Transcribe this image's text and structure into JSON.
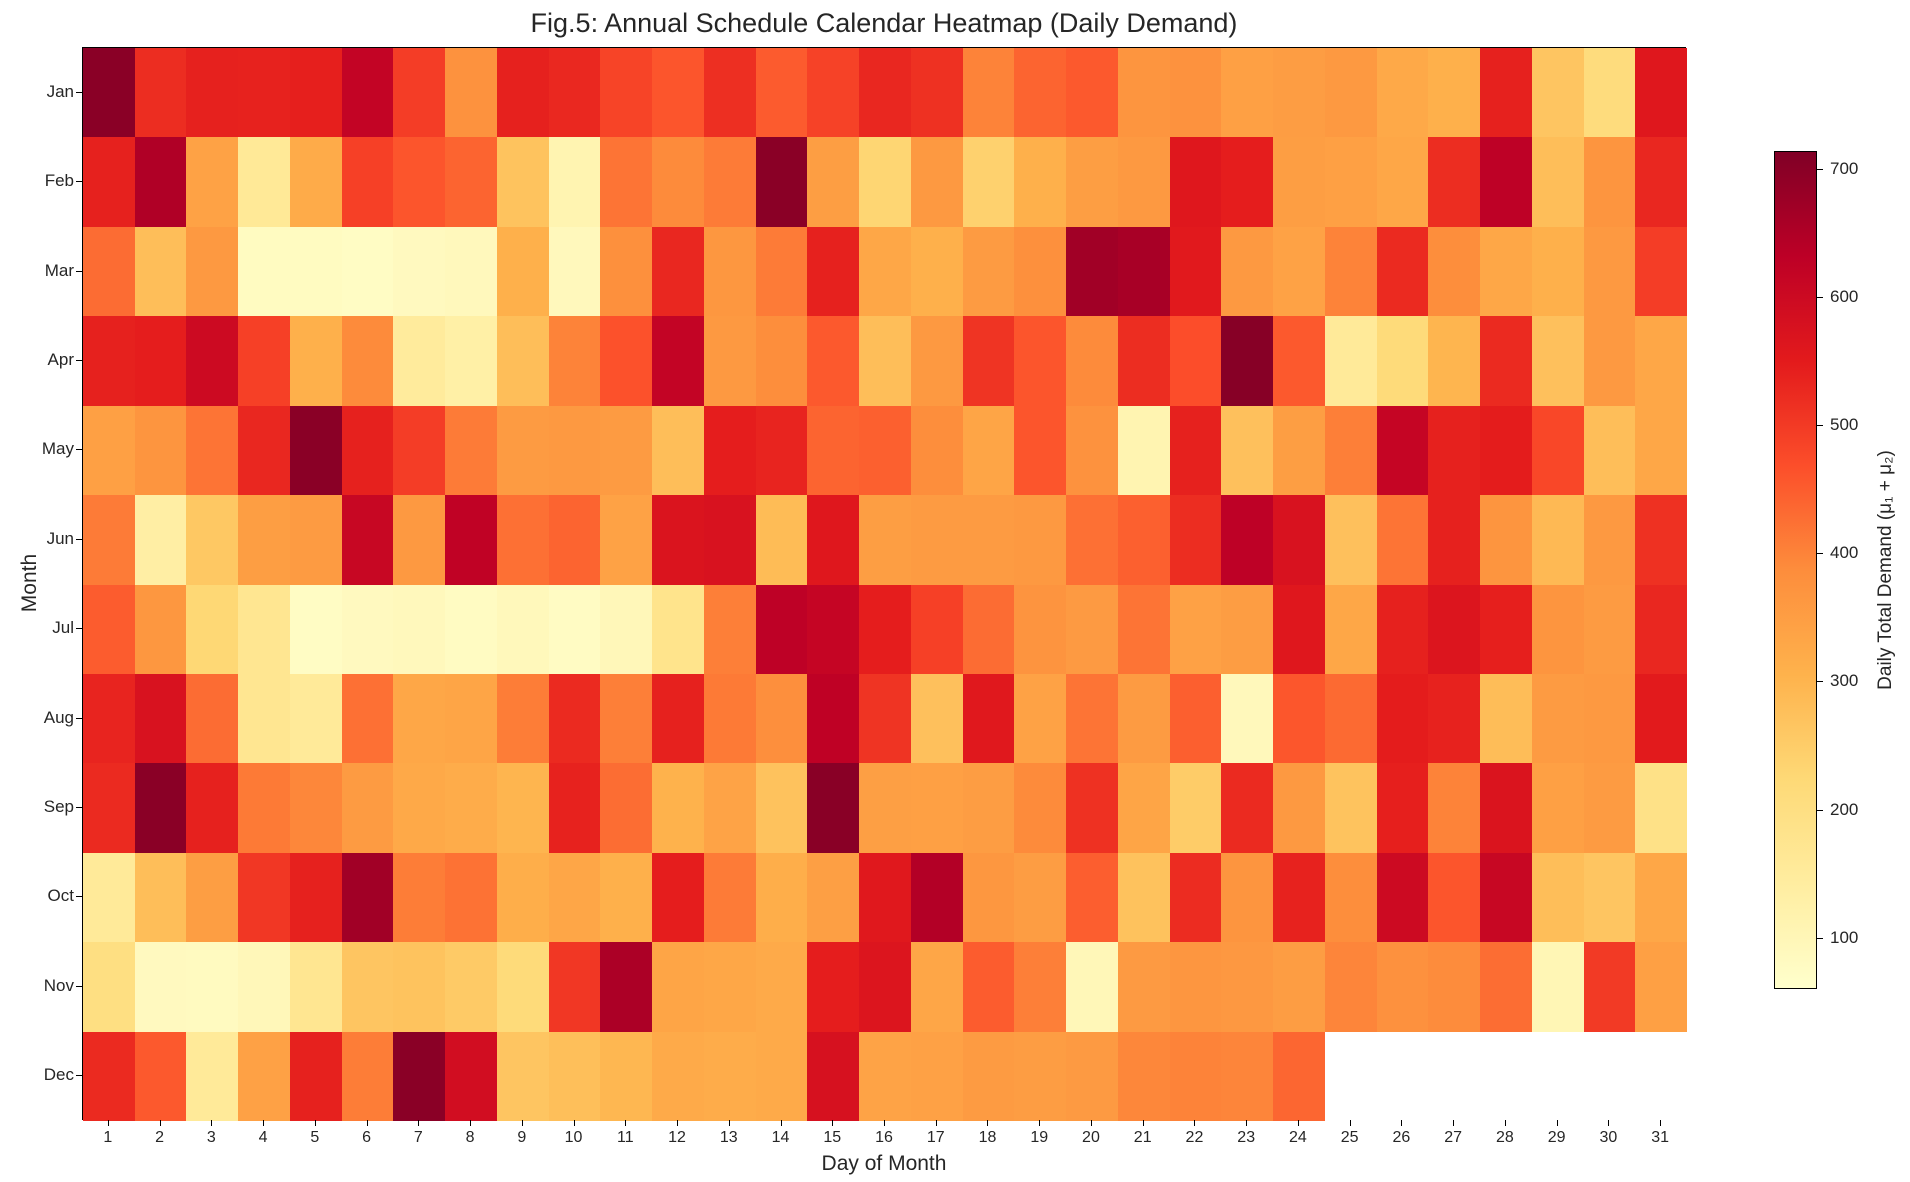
{
  "figure": {
    "background": "#ffffff",
    "text_color": "#262626"
  },
  "chart_data": {
    "type": "heatmap",
    "title": "Fig.5: Annual Schedule Calendar Heatmap (Daily Demand)",
    "xlabel": "Day of Month",
    "ylabel": "Month",
    "x_ticklabels": [
      "1",
      "2",
      "3",
      "4",
      "5",
      "6",
      "7",
      "8",
      "9",
      "10",
      "11",
      "12",
      "13",
      "14",
      "15",
      "16",
      "17",
      "18",
      "19",
      "20",
      "21",
      "22",
      "23",
      "24",
      "25",
      "26",
      "27",
      "28",
      "29",
      "30",
      "31"
    ],
    "y_ticklabels": [
      "Jan",
      "Feb",
      "Mar",
      "Apr",
      "May",
      "Jun",
      "Jul",
      "Aug",
      "Sep",
      "Oct",
      "Nov",
      "Dec"
    ],
    "vmin": 60,
    "vmax": 714,
    "missing_color": "#ffffff",
    "colormap": {
      "name": "YlOrRd",
      "stops": [
        "#ffffcc",
        "#ffeda0",
        "#fed976",
        "#feb24c",
        "#fd8d3c",
        "#fc4e2a",
        "#e31a1c",
        "#bd0026",
        "#800026"
      ]
    },
    "colorbar": {
      "label": "Daily Total Demand (μ₁ + μ₂)",
      "ticks": [
        100,
        200,
        300,
        400,
        500,
        600,
        700
      ]
    },
    "values": [
      [
        700,
        520,
        540,
        538,
        542,
        620,
        495,
        375,
        540,
        528,
        485,
        460,
        518,
        452,
        488,
        530,
        515,
        400,
        440,
        455,
        370,
        375,
        345,
        352,
        360,
        325,
        310,
        540,
        265,
        210,
        560
      ],
      [
        540,
        650,
        340,
        160,
        320,
        490,
        460,
        440,
        270,
        110,
        420,
        390,
        410,
        700,
        350,
        230,
        360,
        240,
        310,
        350,
        360,
        560,
        545,
        350,
        345,
        330,
        520,
        630,
        280,
        370,
        530
      ],
      [
        430,
        280,
        360,
        80,
        80,
        75,
        85,
        90,
        310,
        90,
        380,
        530,
        365,
        410,
        540,
        330,
        310,
        355,
        380,
        670,
        660,
        555,
        360,
        340,
        400,
        525,
        385,
        330,
        310,
        360,
        495
      ],
      [
        540,
        545,
        600,
        490,
        310,
        390,
        150,
        130,
        280,
        400,
        465,
        620,
        360,
        385,
        455,
        280,
        360,
        510,
        460,
        390,
        520,
        470,
        705,
        455,
        155,
        215,
        300,
        525,
        275,
        360,
        330
      ],
      [
        345,
        370,
        420,
        530,
        700,
        540,
        495,
        410,
        355,
        360,
        355,
        280,
        545,
        535,
        440,
        445,
        385,
        335,
        460,
        375,
        110,
        540,
        275,
        350,
        405,
        615,
        540,
        548,
        480,
        280,
        330
      ],
      [
        410,
        135,
        260,
        350,
        355,
        610,
        360,
        625,
        425,
        440,
        340,
        570,
        575,
        285,
        560,
        350,
        355,
        355,
        360,
        425,
        445,
        520,
        630,
        575,
        275,
        420,
        540,
        370,
        290,
        360,
        515
      ],
      [
        450,
        365,
        225,
        170,
        75,
        85,
        90,
        78,
        92,
        76,
        95,
        180,
        405,
        630,
        615,
        545,
        490,
        430,
        372,
        358,
        420,
        342,
        352,
        560,
        330,
        540,
        565,
        542,
        370,
        355,
        530
      ],
      [
        535,
        575,
        430,
        170,
        155,
        425,
        330,
        335,
        408,
        525,
        405,
        540,
        412,
        382,
        628,
        510,
        275,
        558,
        340,
        420,
        357,
        447,
        92,
        458,
        432,
        548,
        538,
        282,
        355,
        360,
        552
      ],
      [
        525,
        700,
        540,
        412,
        395,
        355,
        325,
        318,
        300,
        538,
        428,
        305,
        338,
        272,
        702,
        348,
        345,
        352,
        390,
        515,
        335,
        250,
        525,
        360,
        270,
        542,
        400,
        570,
        345,
        355,
        190
      ],
      [
        155,
        280,
        350,
        505,
        540,
        670,
        408,
        422,
        315,
        332,
        310,
        545,
        410,
        315,
        348,
        558,
        645,
        365,
        352,
        448,
        272,
        522,
        370,
        538,
        385,
        600,
        460,
        610,
        280,
        265,
        330
      ],
      [
        200,
        85,
        82,
        95,
        170,
        265,
        270,
        255,
        215,
        505,
        655,
        335,
        330,
        322,
        545,
        565,
        332,
        450,
        405,
        98,
        358,
        368,
        362,
        352,
        398,
        378,
        388,
        428,
        102,
        500,
        345
      ],
      [
        525,
        455,
        155,
        342,
        540,
        408,
        700,
        590,
        265,
        278,
        295,
        322,
        318,
        322,
        578,
        338,
        342,
        355,
        352,
        358,
        395,
        400,
        398,
        438,
        null,
        null,
        null,
        null,
        null,
        null,
        null
      ]
    ]
  }
}
